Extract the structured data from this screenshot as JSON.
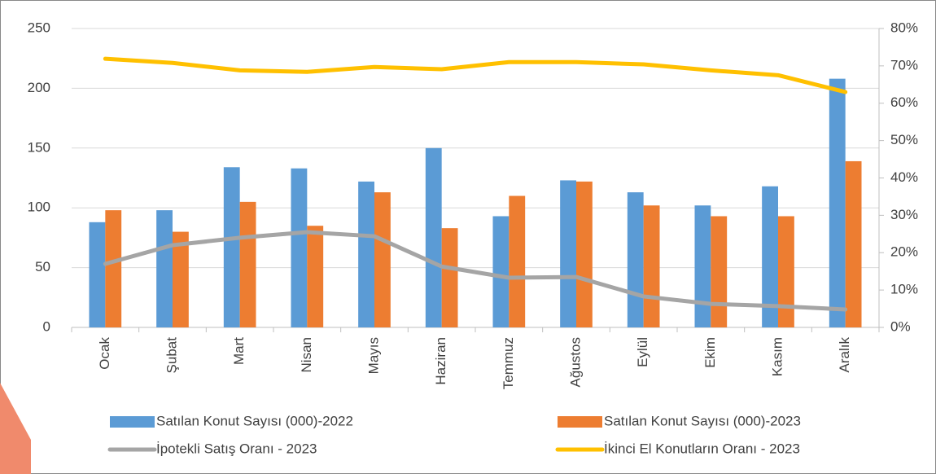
{
  "chart_data": {
    "type": "bar-line",
    "categories": [
      "Ocak",
      "Şubat",
      "Mart",
      "Nisan",
      "Mayıs",
      "Haziran",
      "Temmuz",
      "Ağustos",
      "Eylül",
      "Ekim",
      "Kasım",
      "Aralık"
    ],
    "series": [
      {
        "name": "Satılan Konut Sayısı (000)-2022",
        "type": "bar",
        "color": "#5b9bd5",
        "values": [
          88,
          98,
          134,
          133,
          122,
          150,
          93,
          123,
          113,
          102,
          118,
          208
        ]
      },
      {
        "name": "Satılan Konut Sayısı (000)-2023",
        "type": "bar",
        "color": "#ed7d31",
        "values": [
          98,
          80,
          105,
          85,
          113,
          83,
          110,
          122,
          102,
          93,
          93,
          139
        ]
      },
      {
        "name": "İpotekli Satış Oranı - 2023",
        "type": "line",
        "axis": "y2",
        "color": "#a5a5a5",
        "values": [
          17,
          22,
          24,
          25.5,
          24.4,
          16.3,
          13.3,
          13.5,
          8.3,
          6.3,
          5.7,
          4.8
        ]
      },
      {
        "name": "İkinci El Konutların Oranı - 2023",
        "type": "line",
        "axis": "y2",
        "color": "#ffc000",
        "values": [
          71.9,
          70.8,
          68.8,
          68.4,
          69.7,
          69.1,
          71,
          71,
          70.4,
          68.8,
          67.5,
          63
        ]
      }
    ],
    "ylim": [
      0,
      250
    ],
    "yticks": [
      0,
      50,
      100,
      150,
      200,
      250
    ],
    "y2lim": [
      0,
      80
    ],
    "y2ticks": [
      {
        "value": 0,
        "label": "0%"
      },
      {
        "value": 10,
        "label": "10%"
      },
      {
        "value": 20,
        "label": "20%"
      },
      {
        "value": 30,
        "label": "30%"
      },
      {
        "value": 40,
        "label": "40%"
      },
      {
        "value": 50,
        "label": "50%"
      },
      {
        "value": 60,
        "label": "60%"
      },
      {
        "value": 70,
        "label": "70%"
      },
      {
        "value": 80,
        "label": "80%"
      }
    ],
    "grid": true
  }
}
